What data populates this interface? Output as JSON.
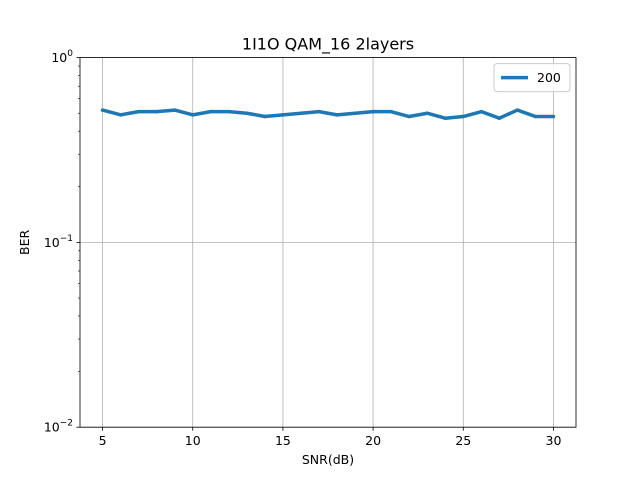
{
  "chart_data": {
    "type": "line",
    "title": "1I1O QAM_16 2layers",
    "xlabel": "SNR(dB)",
    "ylabel": "BER",
    "yscale": "log",
    "xlim": [
      3.75,
      31.25
    ],
    "ylim": [
      0.01,
      1
    ],
    "grid": true,
    "legend_position": "top-right",
    "x_ticks": [
      {
        "value": 5,
        "label": "5"
      },
      {
        "value": 10,
        "label": "10"
      },
      {
        "value": 15,
        "label": "15"
      },
      {
        "value": 20,
        "label": "20"
      },
      {
        "value": 25,
        "label": "25"
      },
      {
        "value": 30,
        "label": "30"
      }
    ],
    "y_ticks": [
      {
        "value": 1,
        "base": "10",
        "exp": "0"
      },
      {
        "value": 0.1,
        "base": "10",
        "exp": "−1"
      },
      {
        "value": 0.01,
        "base": "10",
        "exp": "−2"
      }
    ],
    "series": [
      {
        "name": "200",
        "color": "#1f77b4",
        "x": [
          5,
          6,
          7,
          8,
          9,
          10,
          11,
          12,
          13,
          14,
          15,
          16,
          17,
          18,
          19,
          20,
          21,
          22,
          23,
          24,
          25,
          26,
          27,
          28,
          29,
          30
        ],
        "y": [
          0.52,
          0.49,
          0.51,
          0.51,
          0.52,
          0.49,
          0.51,
          0.51,
          0.5,
          0.48,
          0.49,
          0.5,
          0.51,
          0.49,
          0.5,
          0.51,
          0.51,
          0.48,
          0.5,
          0.47,
          0.48,
          0.51,
          0.47,
          0.52,
          0.48,
          0.48
        ]
      }
    ]
  }
}
